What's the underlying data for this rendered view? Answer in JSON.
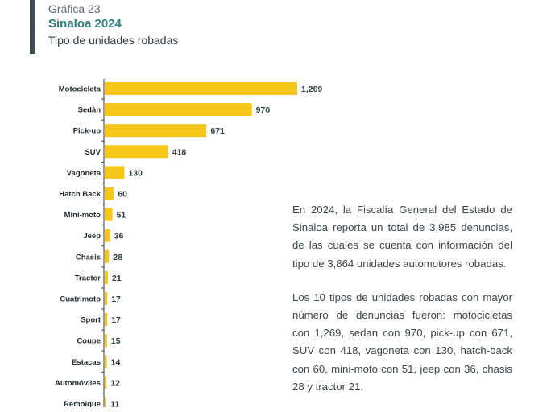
{
  "header": {
    "number": "Gráfica 23",
    "title": "Sinaloa 2024",
    "subtitle": "Tipo de unidades robadas"
  },
  "colors": {
    "bar": "#f5c71a",
    "title": "#2e7d7f",
    "accent": "#3f4e55"
  },
  "chart_data": {
    "type": "bar",
    "orientation": "horizontal",
    "title": "Tipo de unidades robadas",
    "categories": [
      "Motocicleta",
      "Sedán",
      "Pick-up",
      "SUV",
      "Vagoneta",
      "Hatch Back",
      "Mini-moto",
      "Jeep",
      "Chasis",
      "Tractor",
      "Cuatrimoto",
      "Sport",
      "Coupe",
      "Estacas",
      "Automóviles",
      "Remolque"
    ],
    "values": [
      1269,
      970,
      671,
      418,
      130,
      60,
      51,
      36,
      28,
      21,
      17,
      17,
      15,
      14,
      12,
      11
    ],
    "value_labels": [
      "1,269",
      "970",
      "671",
      "418",
      "130",
      "60",
      "51",
      "36",
      "28",
      "21",
      "17",
      "17",
      "15",
      "14",
      "12",
      "11"
    ],
    "xlim": [
      0,
      1269
    ],
    "grid": false,
    "legend": "none"
  },
  "text": {
    "paragraph1": "En 2024, la Fiscalía General del Estado de Sinaloa reporta un total de 3,985 denuncias, de las cuales se cuenta con información del tipo de 3,864 unidades automotores robadas.",
    "paragraph2": "Los 10 tipos de unidades robadas con mayor número de denuncias fueron: motocicletas con 1,269, sedan con 970, pick-up con 671, SUV con 418, vagoneta con 130, hatch-back con 60, mini-moto con 51, jeep con 36, chasis 28 y tractor 21."
  }
}
